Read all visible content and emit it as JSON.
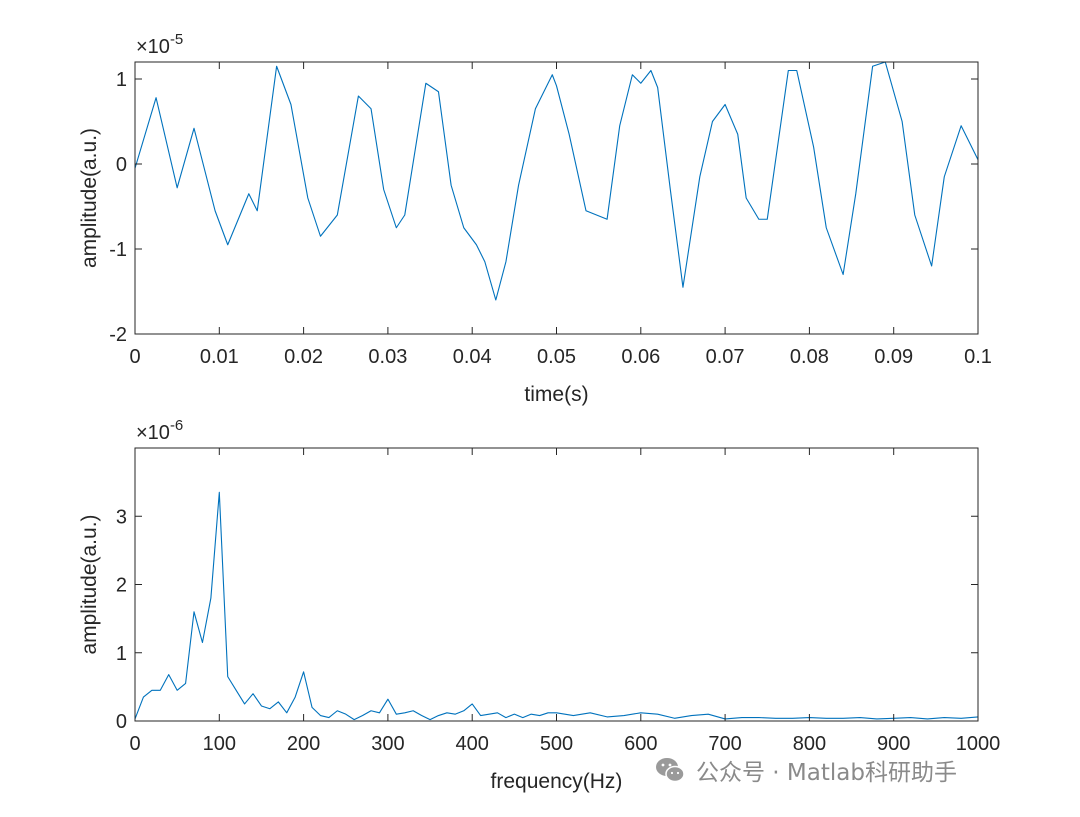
{
  "chart_data": [
    {
      "type": "line",
      "xlabel": "time(s)",
      "ylabel": "amplitude(a.u.)",
      "exponent_label": "-5",
      "xlim": [
        0,
        0.1
      ],
      "ylim": [
        -2,
        1.2
      ],
      "xticks": [
        "0",
        "0.01",
        "0.02",
        "0.03",
        "0.04",
        "0.05",
        "0.06",
        "0.07",
        "0.08",
        "0.09",
        "0.1"
      ],
      "yticks": [
        "-2",
        "-1",
        "0",
        "1"
      ],
      "line_color": "#0072bd",
      "series": [
        {
          "x": [
            0,
            0.0025,
            0.005,
            0.007,
            0.0095,
            0.011,
            0.0135,
            0.0145,
            0.0168,
            0.0185,
            0.0205,
            0.022,
            0.024,
            0.0265,
            0.028,
            0.0295,
            0.031,
            0.032,
            0.0345,
            0.036,
            0.0375,
            0.039,
            0.0405,
            0.0415,
            0.0428,
            0.044,
            0.0455,
            0.0475,
            0.0495,
            0.05,
            0.0515,
            0.0535,
            0.056,
            0.0575,
            0.059,
            0.06,
            0.0612,
            0.062,
            0.0635,
            0.065,
            0.067,
            0.0685,
            0.07,
            0.0715,
            0.0725,
            0.074,
            0.075,
            0.0775,
            0.0785,
            0.0805,
            0.082,
            0.084,
            0.0855,
            0.0875,
            0.089,
            0.091,
            0.0925,
            0.0945,
            0.096,
            0.098,
            0.1
          ],
          "y": [
            -0.05,
            0.78,
            -0.28,
            0.42,
            -0.55,
            -0.95,
            -0.35,
            -0.55,
            1.15,
            0.7,
            -0.4,
            -0.85,
            -0.6,
            0.8,
            0.65,
            -0.3,
            -0.75,
            -0.6,
            0.95,
            0.85,
            -0.25,
            -0.75,
            -0.95,
            -1.15,
            -1.6,
            -1.15,
            -0.25,
            0.65,
            1.05,
            0.92,
            0.35,
            -0.55,
            -0.65,
            0.45,
            1.05,
            0.95,
            1.1,
            0.9,
            -0.3,
            -1.45,
            -0.15,
            0.5,
            0.7,
            0.35,
            -0.4,
            -0.65,
            -0.65,
            1.1,
            1.1,
            0.2,
            -0.75,
            -1.3,
            -0.35,
            1.15,
            1.2,
            0.5,
            -0.6,
            -1.2,
            -0.15,
            0.45,
            0.05
          ]
        }
      ]
    },
    {
      "type": "line",
      "xlabel": "frequency(Hz)",
      "ylabel": "amplitude(a.u.)",
      "exponent_label": "-6",
      "xlim": [
        0,
        1000
      ],
      "ylim": [
        0,
        4
      ],
      "xticks": [
        "0",
        "100",
        "200",
        "300",
        "400",
        "500",
        "600",
        "700",
        "800",
        "900",
        "1000"
      ],
      "yticks": [
        "0",
        "1",
        "2",
        "3"
      ],
      "line_color": "#0072bd",
      "series": [
        {
          "x": [
            0,
            10,
            20,
            30,
            40,
            50,
            60,
            70,
            80,
            90,
            100,
            110,
            120,
            130,
            140,
            150,
            160,
            170,
            180,
            190,
            200,
            210,
            220,
            230,
            240,
            250,
            260,
            270,
            280,
            290,
            300,
            310,
            320,
            330,
            340,
            350,
            360,
            370,
            380,
            390,
            400,
            410,
            420,
            430,
            440,
            450,
            460,
            470,
            480,
            490,
            500,
            520,
            540,
            560,
            580,
            600,
            620,
            640,
            660,
            680,
            700,
            720,
            740,
            760,
            780,
            800,
            820,
            840,
            860,
            880,
            900,
            920,
            940,
            960,
            980,
            1000
          ],
          "y": [
            0.03,
            0.35,
            0.45,
            0.45,
            0.68,
            0.45,
            0.55,
            1.6,
            1.15,
            1.8,
            3.35,
            0.65,
            0.45,
            0.25,
            0.4,
            0.22,
            0.18,
            0.28,
            0.12,
            0.35,
            0.72,
            0.2,
            0.08,
            0.05,
            0.15,
            0.1,
            0.02,
            0.08,
            0.15,
            0.12,
            0.32,
            0.1,
            0.12,
            0.15,
            0.08,
            0.02,
            0.08,
            0.12,
            0.1,
            0.15,
            0.25,
            0.08,
            0.1,
            0.12,
            0.05,
            0.1,
            0.05,
            0.1,
            0.08,
            0.12,
            0.12,
            0.08,
            0.12,
            0.06,
            0.08,
            0.12,
            0.1,
            0.04,
            0.08,
            0.1,
            0.03,
            0.05,
            0.05,
            0.04,
            0.04,
            0.05,
            0.04,
            0.04,
            0.05,
            0.03,
            0.04,
            0.05,
            0.03,
            0.05,
            0.04,
            0.06
          ]
        }
      ]
    }
  ],
  "watermark": {
    "text": "公众号 · Matlab科研助手",
    "icon": "wechat-icon"
  }
}
